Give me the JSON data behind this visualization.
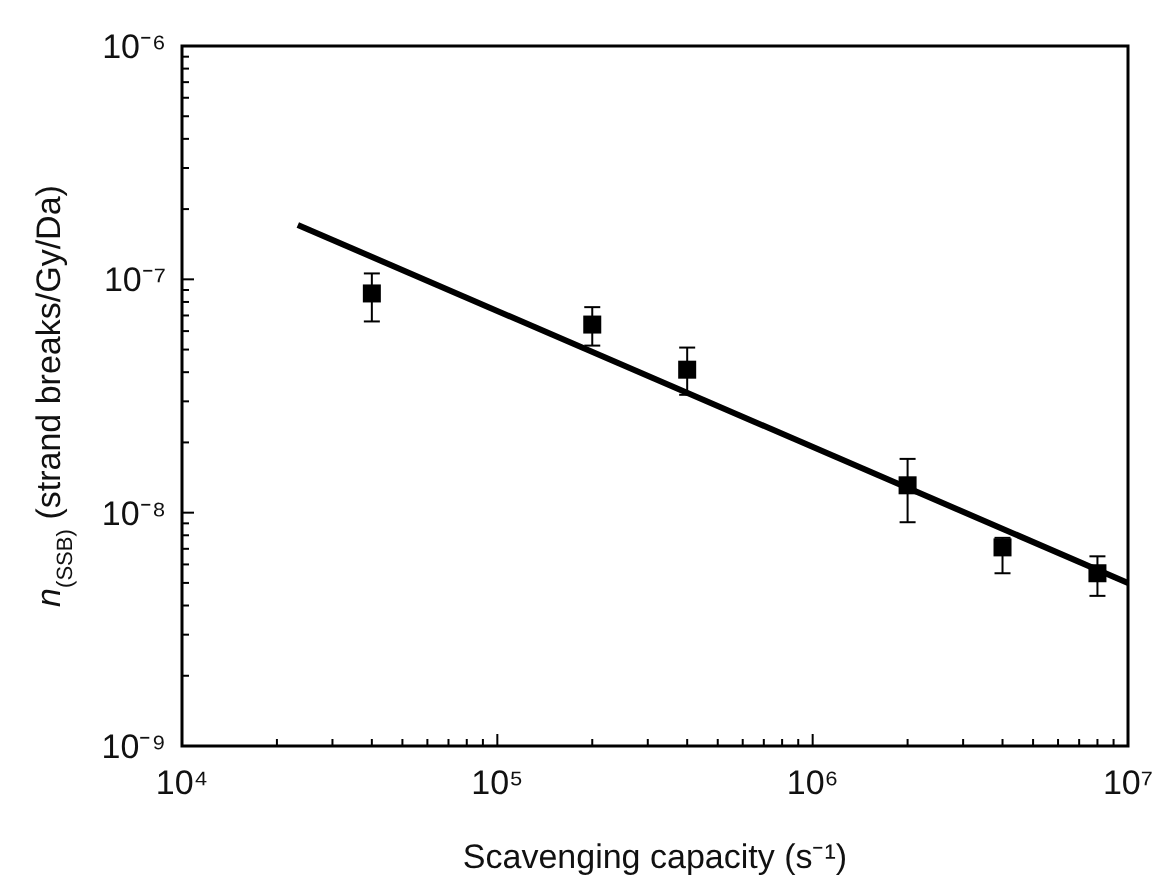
{
  "chart_data": {
    "type": "scatter",
    "xlabel": "Scavenging capacity (s⁻¹)",
    "ylabel": "n$_{(SSB)}$ (strand breaks/Gy/Da)",
    "log": "xy",
    "grid": false,
    "xlim": [
      10000,
      10000000
    ],
    "ylim": [
      1e-09,
      1e-06
    ],
    "xticks": [
      {
        "value": 10000,
        "label": "10⁴"
      },
      {
        "value": 20000,
        "label": null
      },
      {
        "value": 30000,
        "label": null
      },
      {
        "value": 40000,
        "label": null
      },
      {
        "value": 50000,
        "label": null
      },
      {
        "value": 60000,
        "label": null
      },
      {
        "value": 70000,
        "label": null
      },
      {
        "value": 80000,
        "label": null
      },
      {
        "value": 90000,
        "label": null
      },
      {
        "value": 100000,
        "label": "10⁵"
      },
      {
        "value": 200000,
        "label": null
      },
      {
        "value": 300000,
        "label": null
      },
      {
        "value": 400000,
        "label": null
      },
      {
        "value": 500000,
        "label": null
      },
      {
        "value": 600000,
        "label": null
      },
      {
        "value": 700000,
        "label": null
      },
      {
        "value": 800000,
        "label": null
      },
      {
        "value": 900000,
        "label": null
      },
      {
        "value": 1000000,
        "label": "10⁶"
      },
      {
        "value": 2000000,
        "label": null
      },
      {
        "value": 3000000,
        "label": null
      },
      {
        "value": 4000000,
        "label": null
      },
      {
        "value": 5000000,
        "label": null
      },
      {
        "value": 6000000,
        "label": null
      },
      {
        "value": 7000000,
        "label": null
      },
      {
        "value": 8000000,
        "label": null
      },
      {
        "value": 9000000,
        "label": null
      },
      {
        "value": 10000000,
        "label": "10⁷"
      }
    ],
    "yticks": [
      {
        "value": 1e-09,
        "label": "10⁻⁹"
      },
      {
        "value": 2e-09,
        "label": null
      },
      {
        "value": 3e-09,
        "label": null
      },
      {
        "value": 4e-09,
        "label": null
      },
      {
        "value": 5e-09,
        "label": null
      },
      {
        "value": 6e-09,
        "label": null
      },
      {
        "value": 7e-09,
        "label": null
      },
      {
        "value": 8e-09,
        "label": null
      },
      {
        "value": 9e-09,
        "label": null
      },
      {
        "value": 1e-08,
        "label": "10⁻⁸"
      },
      {
        "value": 2e-08,
        "label": null
      },
      {
        "value": 3e-08,
        "label": null
      },
      {
        "value": 4e-08,
        "label": null
      },
      {
        "value": 5e-08,
        "label": null
      },
      {
        "value": 6e-08,
        "label": null
      },
      {
        "value": 7e-08,
        "label": null
      },
      {
        "value": 8e-08,
        "label": null
      },
      {
        "value": 9e-08,
        "label": null
      },
      {
        "value": 1e-07,
        "label": "10⁻⁷"
      },
      {
        "value": 2e-07,
        "label": null
      },
      {
        "value": 3e-07,
        "label": null
      },
      {
        "value": 4e-07,
        "label": null
      },
      {
        "value": 5e-07,
        "label": null
      },
      {
        "value": 6e-07,
        "label": null
      },
      {
        "value": 7e-07,
        "label": null
      },
      {
        "value": 8e-07,
        "label": null
      },
      {
        "value": 9e-07,
        "label": null
      },
      {
        "value": 1e-06,
        "label": "10⁻⁶"
      }
    ],
    "series": [
      {
        "marker": "square",
        "color": "#000000",
        "x": [
          40000,
          200000,
          400000,
          2000000,
          4000000,
          8000000
        ],
        "values": [
          8.7e-08,
          6.4e-08,
          4.1e-08,
          1.31e-08,
          7.1e-09,
          5.5e-09
        ],
        "errors": [
          [
            6.6e-08,
            1.06e-07
          ],
          [
            5.2e-08,
            7.6e-08
          ],
          [
            3.2e-08,
            5.1e-08
          ],
          [
            9.1e-09,
            1.7e-08
          ],
          [
            5.5e-09,
            7.8e-09
          ],
          [
            4.4e-09,
            6.5e-09
          ]
        ]
      },
      {
        "type": "line",
        "line_style": "solid",
        "color": "#000000",
        "x": [
          23300,
          10000000
        ],
        "values": [
          1.71e-07,
          5e-09
        ]
      }
    ]
  }
}
